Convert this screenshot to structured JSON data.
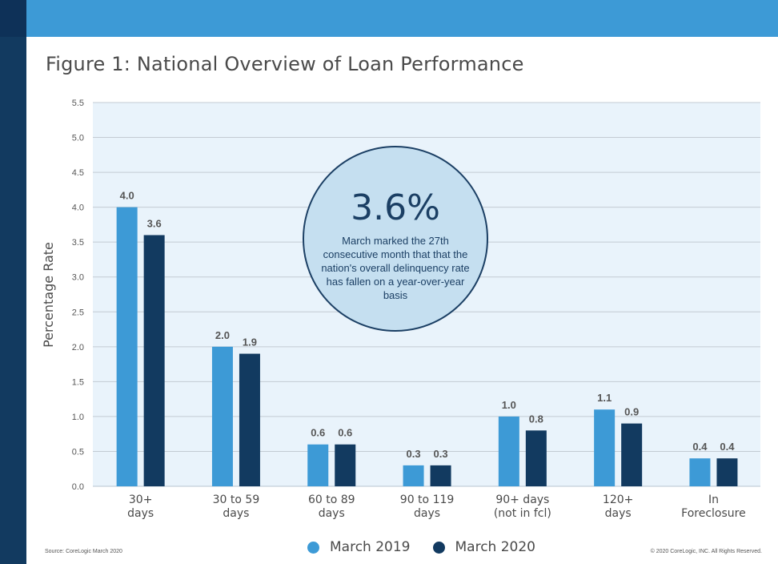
{
  "figure": {
    "title": "Figure 1: National Overview of Loan Performance",
    "source": "Source: CoreLogic March 2020",
    "copyright": "© 2020 CoreLogic, INC. All Rights Reserved."
  },
  "callout": {
    "value": "3.6%",
    "text": "March marked the 27th consecutive month that that the nation's overall delinquency rate has fallen on a year-over-year basis"
  },
  "colors": {
    "top_band": "#3d9ad6",
    "side_band": "#123a60",
    "plot_background": "#e9f3fb",
    "march_2019": "#3d9ad6",
    "march_2020": "#123a60"
  },
  "chart_data": {
    "type": "bar",
    "title": "Figure 1: National Overview of Loan Performance",
    "xlabel": "",
    "ylabel": "Percentage Rate",
    "ylim": [
      0,
      5.5
    ],
    "yticks": [
      "0.0",
      "0.5",
      "1.0",
      "1.5",
      "2.0",
      "2.5",
      "3.0",
      "3.5",
      "4.0",
      "4.5",
      "5.0",
      "5.5"
    ],
    "grid": true,
    "legend_position": "bottom",
    "categories": [
      [
        "30+",
        "days"
      ],
      [
        "30 to 59",
        "days"
      ],
      [
        "60 to 89",
        "days"
      ],
      [
        "90 to 119",
        "days"
      ],
      [
        "90+ days",
        "(not in fcl)"
      ],
      [
        "120+",
        "days"
      ],
      [
        "In",
        "Foreclosure"
      ]
    ],
    "series": [
      {
        "name": "March 2019",
        "values": [
          4.0,
          2.0,
          0.6,
          0.3,
          1.0,
          1.1,
          0.4
        ],
        "labels": [
          "4.0",
          "2.0",
          "0.6",
          "0.3",
          "1.0",
          "1.1",
          "0.4"
        ]
      },
      {
        "name": "March 2020",
        "values": [
          3.6,
          1.9,
          0.6,
          0.3,
          0.8,
          0.9,
          0.4
        ],
        "labels": [
          "3.6",
          "1.9",
          "0.6",
          "0.3",
          "0.8",
          "0.9",
          "0.4"
        ]
      }
    ]
  }
}
